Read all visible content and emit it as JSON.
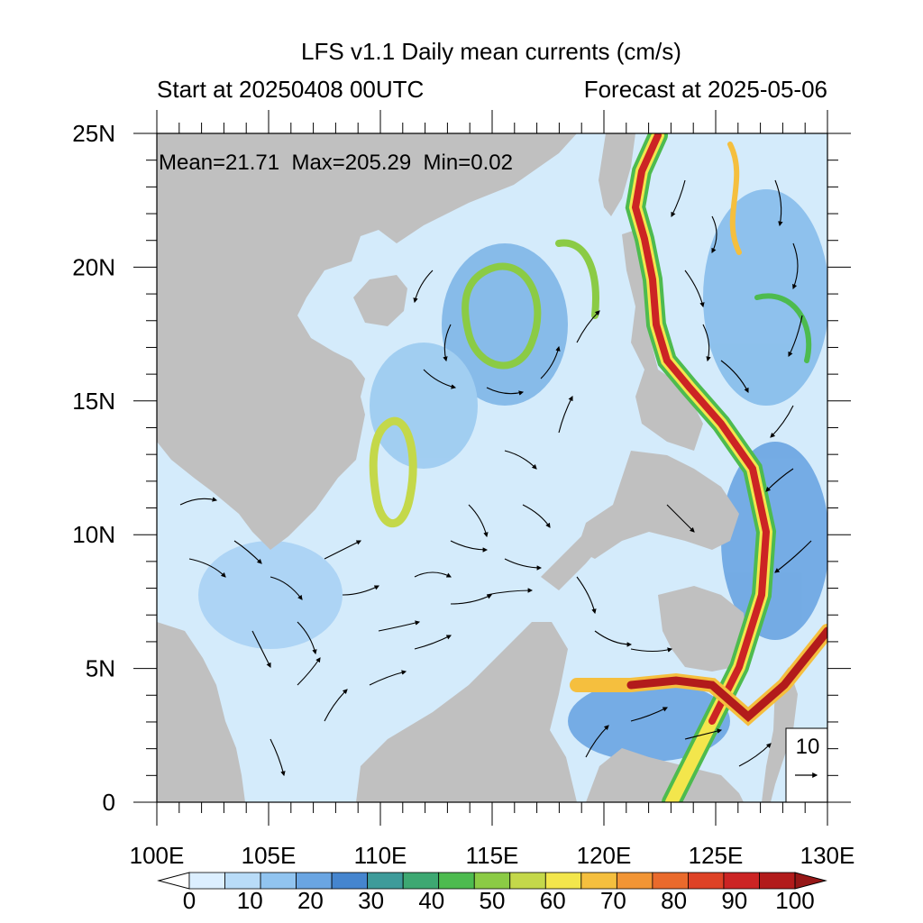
{
  "title": "LFS v1.1 Daily mean currents (cm/s)",
  "subtitle_left": "Start at 20250408 00UTC",
  "subtitle_right": "Forecast at 2025-05-06",
  "stats": "Mean=21.71  Max=205.29  Min=0.02",
  "reference_vector": {
    "value": "10"
  },
  "map_extent": {
    "lon": [
      100,
      130
    ],
    "lat": [
      0,
      25
    ]
  },
  "lat_ticks": [
    {
      "value": 25,
      "label": "25N"
    },
    {
      "value": 20,
      "label": "20N"
    },
    {
      "value": 15,
      "label": "15N"
    },
    {
      "value": 10,
      "label": "10N"
    },
    {
      "value": 5,
      "label": "5N"
    },
    {
      "value": 0,
      "label": "0"
    }
  ],
  "lon_ticks": [
    {
      "value": 100,
      "label": "100E"
    },
    {
      "value": 105,
      "label": "105E"
    },
    {
      "value": 110,
      "label": "110E"
    },
    {
      "value": 115,
      "label": "115E"
    },
    {
      "value": 120,
      "label": "120E"
    },
    {
      "value": 125,
      "label": "125E"
    },
    {
      "value": 130,
      "label": "130E"
    }
  ],
  "colorbar": {
    "labels": [
      "0",
      "10",
      "20",
      "30",
      "40",
      "50",
      "60",
      "70",
      "80",
      "90",
      "100"
    ],
    "colors": [
      "#ffffff",
      "#dcefff",
      "#b9dcf8",
      "#91c4f0",
      "#6aa5e2",
      "#4585cf",
      "#3e9b9a",
      "#3da872",
      "#4dbb4f",
      "#8bcb45",
      "#c4d84a",
      "#f3e64c",
      "#f5bf3e",
      "#f29535",
      "#ea6a2c",
      "#de4226",
      "#cc2424",
      "#b21b1b",
      "#961717"
    ]
  },
  "colors": {
    "land": "#c0c0c0",
    "frame": "#000000"
  }
}
